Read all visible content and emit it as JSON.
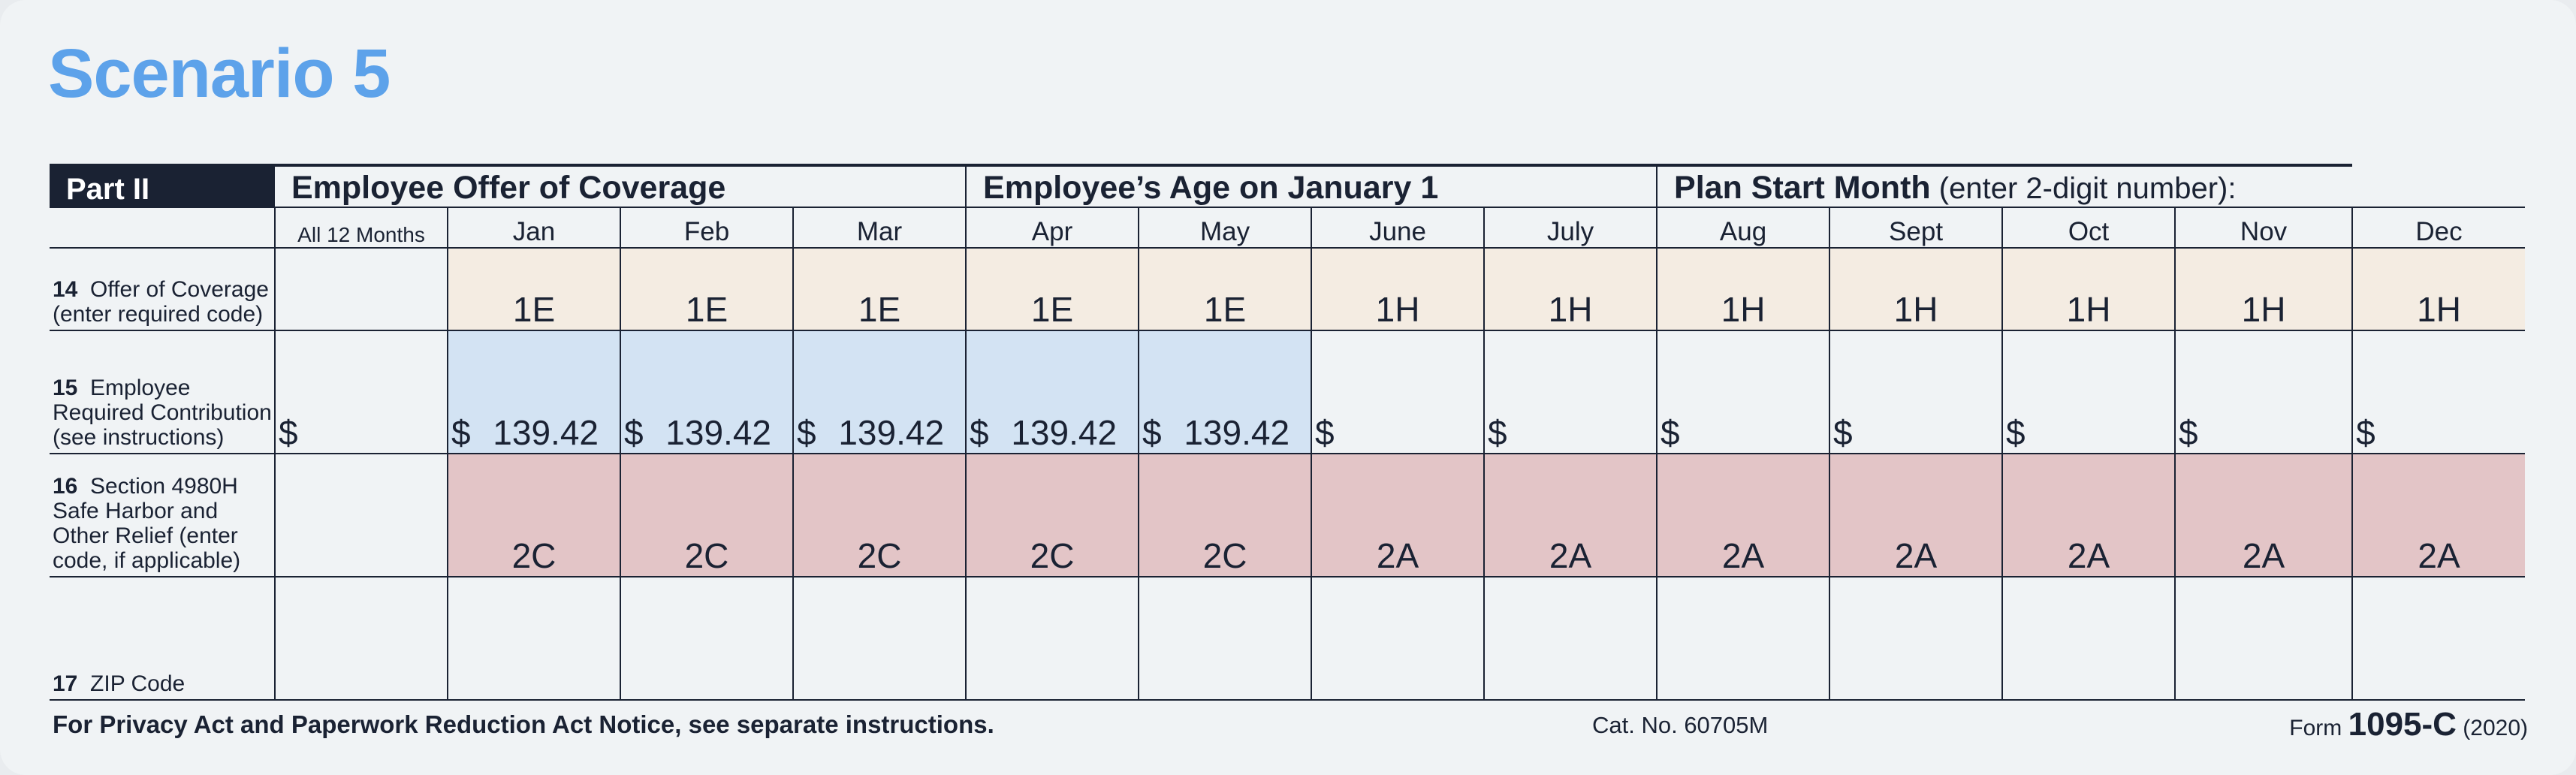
{
  "title": "Scenario 5",
  "form": {
    "part_label": "Part II",
    "header_offer": "Employee Offer of Coverage",
    "header_age": "Employee’s Age on January 1",
    "header_plan_bold": "Plan Start Month",
    "header_plan_note": " (enter 2-digit number):",
    "all12_label": "All 12 Months",
    "months": [
      "Jan",
      "Feb",
      "Mar",
      "Apr",
      "May",
      "June",
      "July",
      "Aug",
      "Sept",
      "Oct",
      "Nov",
      "Dec"
    ],
    "row14": {
      "number": "14",
      "label": "Offer of Coverage (enter required code)",
      "all12": "",
      "values": [
        "1E",
        "1E",
        "1E",
        "1E",
        "1E",
        "1H",
        "1H",
        "1H",
        "1H",
        "1H",
        "1H",
        "1H"
      ],
      "color": "#f4ece2"
    },
    "row15": {
      "number": "15",
      "label": "Employee Required Contribution (see instructions)",
      "currency": "$",
      "all12": "",
      "values": [
        "139.42",
        "139.42",
        "139.42",
        "139.42",
        "139.42",
        "",
        "",
        "",
        "",
        "",
        "",
        ""
      ],
      "color": "#d3e3f3"
    },
    "row16": {
      "number": "16",
      "label": "Section 4980H Safe Harbor and Other Relief (enter code, if applicable)",
      "all12": "",
      "values": [
        "2C",
        "2C",
        "2C",
        "2C",
        "2C",
        "2A",
        "2A",
        "2A",
        "2A",
        "2A",
        "2A",
        "2A"
      ],
      "color": "#e3c5c7"
    },
    "row17": {
      "number": "17",
      "label": "ZIP Code"
    }
  },
  "footer": {
    "notice": "For Privacy Act and Paperwork Reduction Act Notice, see separate instructions.",
    "cat_no": "Cat. No. 60705M",
    "form_prefix": "Form ",
    "form_number": "1095-C",
    "form_year": " (2020)"
  },
  "colors": {
    "title": "#5da2ea",
    "ink": "#1a2233",
    "background": "#f0f3f5"
  }
}
